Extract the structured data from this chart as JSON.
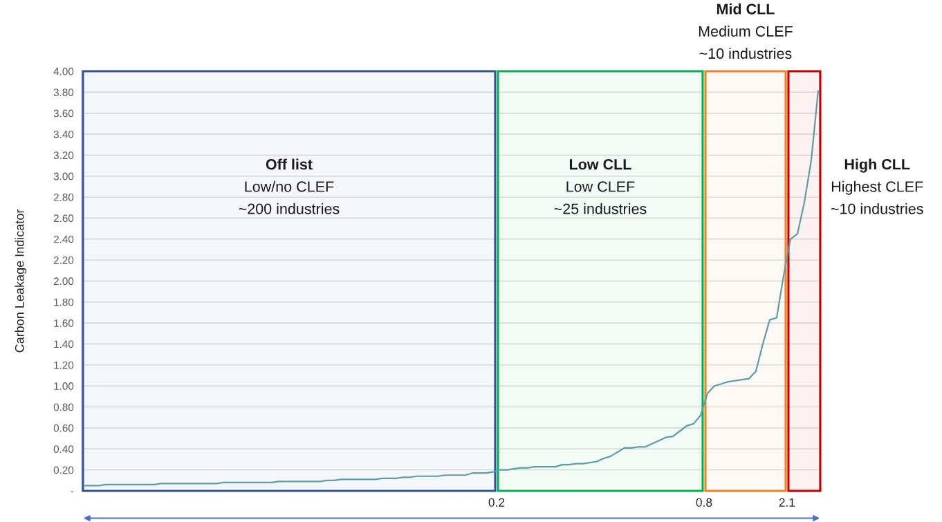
{
  "chart_data": {
    "type": "line",
    "ylabel": "Carbon Leakage Indicator",
    "categories": [
      null,
      null,
      null,
      null,
      null,
      null,
      null,
      null,
      null,
      null,
      null,
      null,
      null,
      null,
      null,
      null,
      null,
      null,
      null,
      null,
      null,
      null,
      null,
      null,
      null,
      null,
      null,
      null,
      null,
      null,
      null,
      null,
      null,
      null,
      null,
      null,
      null,
      null,
      null,
      null,
      null,
      null,
      null,
      null,
      null,
      null,
      null,
      null,
      null,
      null,
      null,
      null,
      null,
      null,
      null,
      null,
      null,
      null,
      null,
      null,
      null,
      null,
      null,
      null,
      null,
      null,
      null,
      null,
      null,
      null,
      null,
      null,
      null,
      null,
      null,
      null,
      null,
      null,
      null,
      null,
      null,
      null,
      null,
      null,
      null,
      null,
      null,
      null,
      null,
      null,
      null,
      null,
      null,
      null,
      null,
      null,
      null,
      null,
      null,
      null,
      null,
      null,
      null,
      null,
      null,
      null,
      null
    ],
    "series": [
      {
        "color": "#5b9ea6",
        "values": [
          0.05,
          0.05,
          0.05,
          0.06,
          0.06,
          0.06,
          0.06,
          0.06,
          0.06,
          0.06,
          0.06,
          0.07,
          0.07,
          0.07,
          0.07,
          0.07,
          0.07,
          0.07,
          0.07,
          0.07,
          0.08,
          0.08,
          0.08,
          0.08,
          0.08,
          0.08,
          0.08,
          0.08,
          0.09,
          0.09,
          0.09,
          0.09,
          0.09,
          0.09,
          0.09,
          0.1,
          0.1,
          0.11,
          0.11,
          0.11,
          0.11,
          0.11,
          0.11,
          0.12,
          0.12,
          0.12,
          0.13,
          0.13,
          0.14,
          0.14,
          0.14,
          0.14,
          0.15,
          0.15,
          0.15,
          0.15,
          0.17,
          0.17,
          0.17,
          0.18,
          0.2,
          0.2,
          0.21,
          0.22,
          0.22,
          0.23,
          0.23,
          0.23,
          0.23,
          0.25,
          0.25,
          0.26,
          0.26,
          0.27,
          0.28,
          0.31,
          0.33,
          0.37,
          0.41,
          0.41,
          0.42,
          0.42,
          0.45,
          0.48,
          0.51,
          0.52,
          0.57,
          0.62,
          0.64,
          0.72,
          0.93,
          1.0,
          1.02,
          1.04,
          1.05,
          1.06,
          1.07,
          1.14,
          1.4,
          1.63,
          1.65,
          2.05,
          2.4,
          2.45,
          2.75,
          3.15,
          3.81
        ]
      }
    ],
    "ylim": [
      0,
      4
    ],
    "yticks": [
      {
        "value": 0,
        "label": "-"
      },
      {
        "value": 0.2,
        "label": "0.20"
      },
      {
        "value": 0.4,
        "label": "0.40"
      },
      {
        "value": 0.6,
        "label": "0.60"
      },
      {
        "value": 0.8,
        "label": "0.80"
      },
      {
        "value": 1.0,
        "label": "1.00"
      },
      {
        "value": 1.2,
        "label": "1.20"
      },
      {
        "value": 1.4,
        "label": "1.40"
      },
      {
        "value": 1.6,
        "label": "1.60"
      },
      {
        "value": 1.8,
        "label": "1.80"
      },
      {
        "value": 2.0,
        "label": "2.00"
      },
      {
        "value": 2.2,
        "label": "2.20"
      },
      {
        "value": 2.4,
        "label": "2.40"
      },
      {
        "value": 2.6,
        "label": "2.60"
      },
      {
        "value": 2.8,
        "label": "2.80"
      },
      {
        "value": 3.0,
        "label": "3.00"
      },
      {
        "value": 3.2,
        "label": "3.20"
      },
      {
        "value": 3.4,
        "label": "3.40"
      },
      {
        "value": 3.6,
        "label": "3.60"
      },
      {
        "value": 3.8,
        "label": "3.80"
      },
      {
        "value": 4.0,
        "label": "4.00"
      }
    ],
    "grid": "y",
    "marker": "none",
    "line_style": "solid",
    "annotations": [
      "Off list\nLow/no CLEF\n~200 industries",
      "Low CLL\nLow CLEF\n~25 industries",
      "Mid CLL\nMedium CLEF\n~10 industries",
      "High CLL\nHighest CLEF\n~10 industries",
      "0.2",
      "0.8",
      "2.1"
    ]
  }
}
